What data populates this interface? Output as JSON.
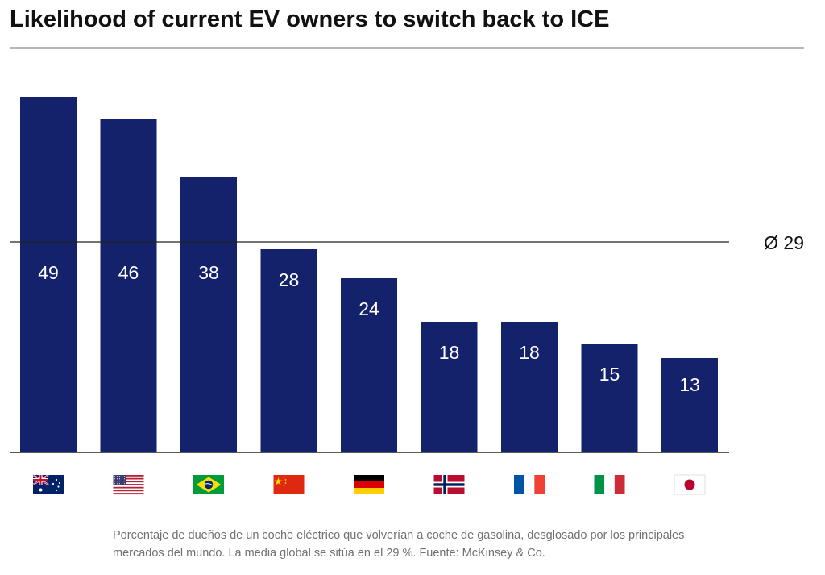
{
  "title": "Likelihood of current EV owners to switch back to ICE",
  "caption": "Porcentaje de dueños de un coche eléctrico que volverían a coche de gasolina, desglosado por los principales mercados del mundo. La media global se sitúa en el 29 %. Fuente: McKinsey & Co.",
  "colors": {
    "bar": "#14216b",
    "bar_label": "#ffffff",
    "axis": "#222222",
    "title_rule": "#b5b5b5",
    "caption": "#707070"
  },
  "chart_data": {
    "type": "bar",
    "categories": [
      "Australia",
      "United States",
      "Brazil",
      "China",
      "Germany",
      "Norway",
      "France",
      "Italy",
      "Japan"
    ],
    "category_display": "flag-icons",
    "values": [
      49,
      46,
      38,
      28,
      24,
      18,
      18,
      15,
      13
    ],
    "data_labels": [
      "49",
      "46",
      "38",
      "28",
      "24",
      "18",
      "18",
      "15",
      "13"
    ],
    "average": {
      "value": 29,
      "label": "Ø 29"
    },
    "ylim": [
      0,
      49
    ],
    "grid": false,
    "legend": "none"
  }
}
